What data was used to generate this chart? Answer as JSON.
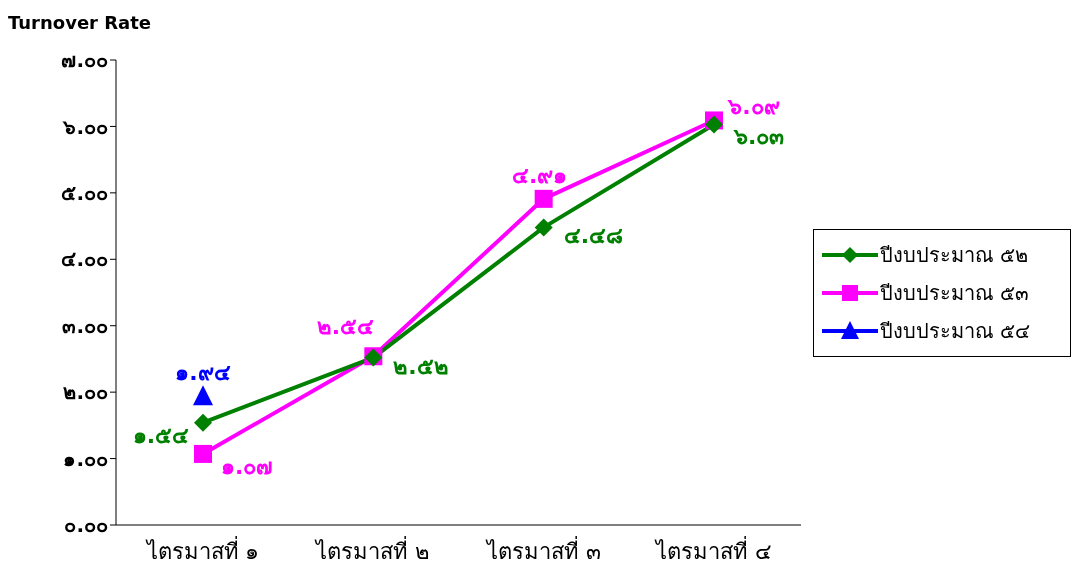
{
  "chart_data": {
    "type": "line",
    "title": "Turnover Rate",
    "categories": [
      "ไตรมาสที่ ๑",
      "ไตรมาสที่ ๒",
      "ไตรมาสที่ ๓",
      "ไตรมาสที่ ๔"
    ],
    "series": [
      {
        "name": "ปีงบประมาณ ๕๒",
        "color": "#008000",
        "marker": "diamond",
        "values": [
          1.54,
          2.52,
          4.48,
          6.03
        ],
        "value_labels": [
          "๑.๕๔",
          "๒.๕๒",
          "๔.๔๘",
          "๖.๐๓"
        ]
      },
      {
        "name": "ปีงบประมาณ ๕๓",
        "color": "#ff00ff",
        "marker": "square",
        "values": [
          1.07,
          2.54,
          4.91,
          6.09
        ],
        "value_labels": [
          "๑.๐๗",
          "๒.๕๔",
          "๔.๙๑",
          "๖.๐๙"
        ]
      },
      {
        "name": "ปีงบประมาณ ๕๔",
        "color": "#0000ff",
        "marker": "triangle",
        "values": [
          1.94,
          null,
          null,
          null
        ],
        "value_labels": [
          "๑.๙๔",
          null,
          null,
          null
        ]
      }
    ],
    "ylim": [
      0,
      7
    ],
    "yticks": [
      {
        "value": 0,
        "label": "๐.๐๐"
      },
      {
        "value": 1,
        "label": "๑.๐๐"
      },
      {
        "value": 2,
        "label": "๒.๐๐"
      },
      {
        "value": 3,
        "label": "๓.๐๐"
      },
      {
        "value": 4,
        "label": "๔.๐๐"
      },
      {
        "value": 5,
        "label": "๕.๐๐"
      },
      {
        "value": 6,
        "label": "๖.๐๐"
      },
      {
        "value": 7,
        "label": "๗.๐๐"
      }
    ],
    "grid": false,
    "legend": "right"
  }
}
